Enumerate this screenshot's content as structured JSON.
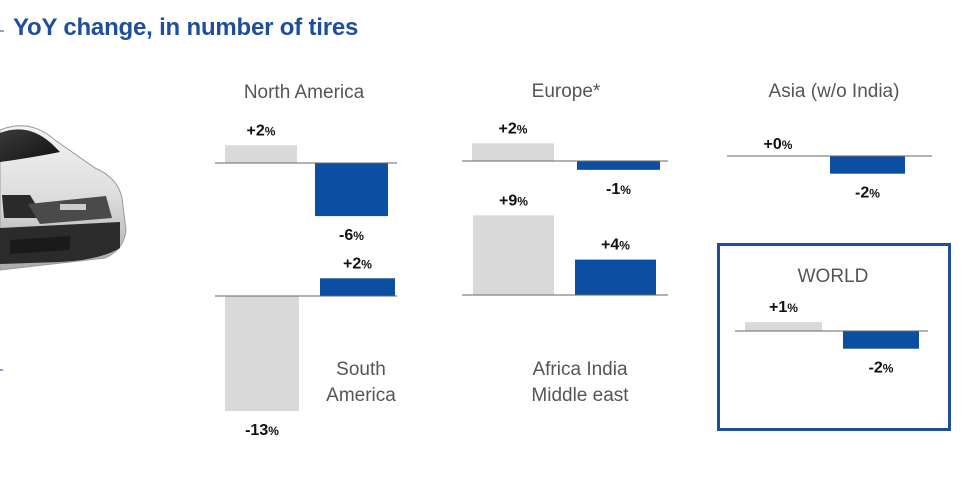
{
  "title": "YoY change, in number of tires",
  "colors": {
    "prior": "#d9d9d9",
    "current": "#0b4ea2",
    "title": "#1f4e9a"
  },
  "chart_data": {
    "type": "bar",
    "title": "YoY change, in number of tires",
    "unit": "%",
    "panels": [
      {
        "region": "North America",
        "values": [
          2,
          -6
        ],
        "labels": [
          "+2",
          "-6"
        ]
      },
      {
        "region": "Europe*",
        "values": [
          2,
          -1
        ],
        "labels": [
          "+2",
          "-1"
        ]
      },
      {
        "region": "Asia (w/o India)",
        "values": [
          0,
          -2
        ],
        "labels": [
          "+0",
          "-2"
        ]
      },
      {
        "region": "South America",
        "values": [
          -13,
          2
        ],
        "labels": [
          "-13",
          "+2"
        ]
      },
      {
        "region": "Africa India Middle east",
        "values": [
          9,
          4
        ],
        "labels": [
          "+9",
          "+4"
        ]
      },
      {
        "region": "WORLD",
        "values": [
          1,
          -2
        ],
        "labels": [
          "+1",
          "-2"
        ]
      }
    ]
  }
}
